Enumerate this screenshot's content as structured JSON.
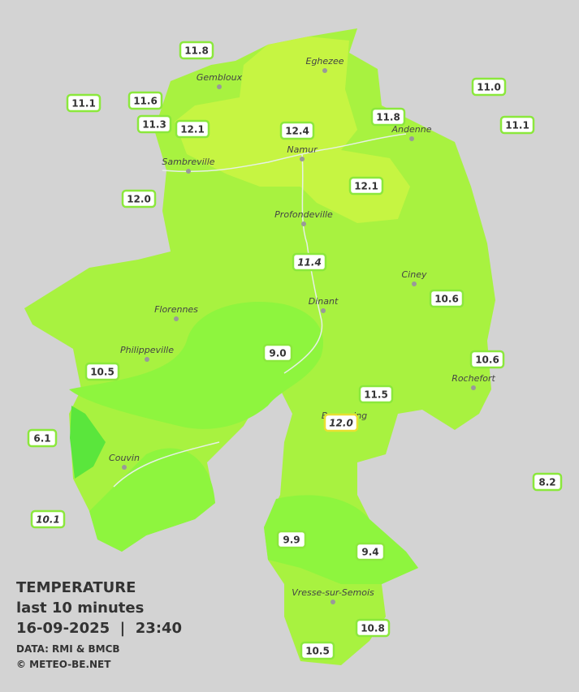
{
  "legend": {
    "title": "TEMPERATURE",
    "period": "last 10 minutes",
    "timestamp": "16-09-2025  |  23:40",
    "source": "DATA: RMI & BMCB",
    "credit": "© METEO-BE.NET"
  },
  "towns": [
    "Eghezee",
    "Gembloux",
    "Andenne",
    "Namur",
    "Sambreville",
    "Profondeville",
    "Ciney",
    "Dinant",
    "Florennes",
    "Philippeville",
    "Rochefort",
    "Beauraing",
    "Couvin",
    "Vresse-sur-Semois"
  ],
  "stations": [
    {
      "label": "11.8",
      "italic": false
    },
    {
      "label": "11.1",
      "italic": false
    },
    {
      "label": "11.6",
      "italic": false
    },
    {
      "label": "11.3",
      "italic": false
    },
    {
      "label": "12.1",
      "italic": false
    },
    {
      "label": "12.4",
      "italic": false
    },
    {
      "label": "11.8",
      "italic": false
    },
    {
      "label": "11.0",
      "italic": false
    },
    {
      "label": "11.1",
      "italic": false
    },
    {
      "label": "12.1",
      "italic": false
    },
    {
      "label": "12.0",
      "italic": false
    },
    {
      "label": "11.4",
      "italic": true
    },
    {
      "label": "10.6",
      "italic": false
    },
    {
      "label": "9.0",
      "italic": false
    },
    {
      "label": "10.5",
      "italic": false
    },
    {
      "label": "10.6",
      "italic": false
    },
    {
      "label": "11.5",
      "italic": false
    },
    {
      "label": "12.0",
      "italic": true
    },
    {
      "label": "6.1",
      "italic": false
    },
    {
      "label": "8.2",
      "italic": false
    },
    {
      "label": "10.1",
      "italic": true
    },
    {
      "label": "9.9",
      "italic": false
    },
    {
      "label": "9.4",
      "italic": false
    },
    {
      "label": "10.8",
      "italic": false
    },
    {
      "label": "10.5",
      "italic": false
    }
  ]
}
